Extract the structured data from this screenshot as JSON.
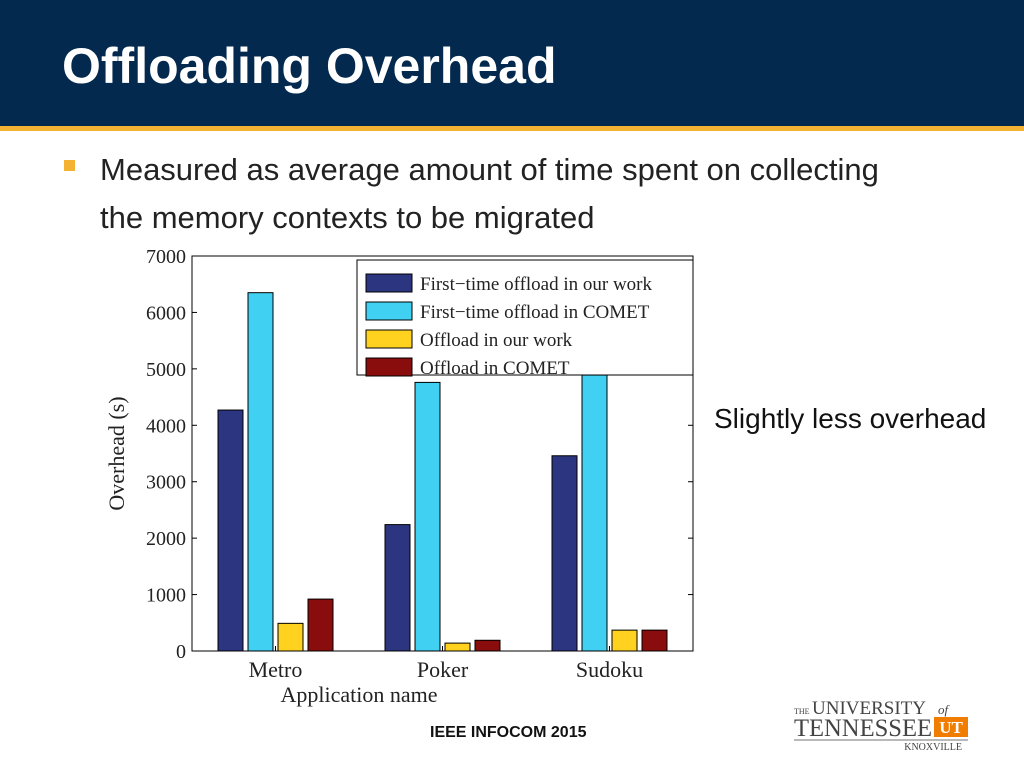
{
  "slide": {
    "title": "Offloading Overhead",
    "bullet": "Measured as average amount of time spent on collecting the memory contexts to be migrated",
    "side_note": "Slightly less overhead",
    "footer": "IEEE INFOCOM 2015"
  },
  "logo": {
    "line1_the": "THE",
    "line1_university": "UNIVERSITY",
    "line1_of": "of",
    "line2": "TENNESSEE",
    "mark": "UT",
    "line3": "KNOXVILLE",
    "color": "#444444",
    "accent": "#f07c00"
  },
  "colors": {
    "header": "#03294f",
    "header_rule": "#f4b233",
    "bullet": "#f4b233"
  },
  "chart_data": {
    "type": "bar",
    "categories": [
      "Metro",
      "Poker",
      "Sudoku"
    ],
    "series": [
      {
        "name": "First−time offload in our work",
        "color": "#2b3580",
        "values": [
          4270,
          2240,
          3460
        ]
      },
      {
        "name": "First−time offload in COMET",
        "color": "#40d1f2",
        "values": [
          6350,
          4760,
          4890
        ]
      },
      {
        "name": "Offload in our work",
        "color": "#ffd21f",
        "values": [
          490,
          140,
          370
        ]
      },
      {
        "name": "Offload in COMET",
        "color": "#8a0d0d",
        "values": [
          920,
          190,
          370
        ]
      }
    ],
    "xlabel": "Application name",
    "ylabel": "Overhead (s)",
    "ylim": [
      0,
      7000
    ],
    "yticks": [
      0,
      1000,
      2000,
      3000,
      4000,
      5000,
      6000,
      7000
    ],
    "legend_position": "top-right",
    "grid": false
  }
}
